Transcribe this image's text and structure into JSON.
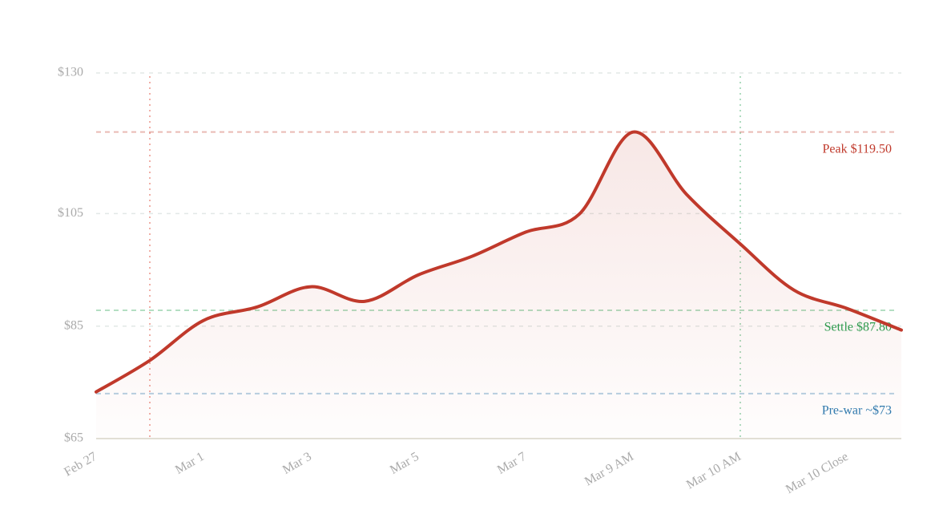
{
  "chart_data": {
    "type": "area-line",
    "categories": [
      "Feb 27",
      null,
      "Mar 1",
      null,
      "Mar 3",
      null,
      "Mar 5",
      null,
      "Mar 7",
      null,
      "Mar 9 AM",
      null,
      "Mar 10 AM",
      null,
      "Mar 10 Close",
      null
    ],
    "values": [
      73.3,
      78.9,
      86,
      88.4,
      92,
      89.4,
      94.1,
      97.4,
      101.7,
      104.9,
      119.5,
      108.4,
      99.6,
      91.4,
      88.1,
      84.3
    ],
    "color": "#c0392b",
    "ylim": [
      65,
      130
    ],
    "yticks": [
      {
        "value": 65,
        "label": "$65"
      },
      {
        "value": 85,
        "label": "$85"
      },
      {
        "value": 105,
        "label": "$105"
      },
      {
        "value": 130,
        "label": "$130"
      }
    ],
    "grid": true,
    "reference_lines": [
      {
        "value": 119.5,
        "label": "Peak $119.50",
        "color": "#c0392b"
      },
      {
        "value": 87.8,
        "label": "Settle $87.80",
        "color": "#27a050"
      },
      {
        "value": 73,
        "label": "Pre-war ~$73",
        "color": "#2e7bb0"
      }
    ]
  }
}
